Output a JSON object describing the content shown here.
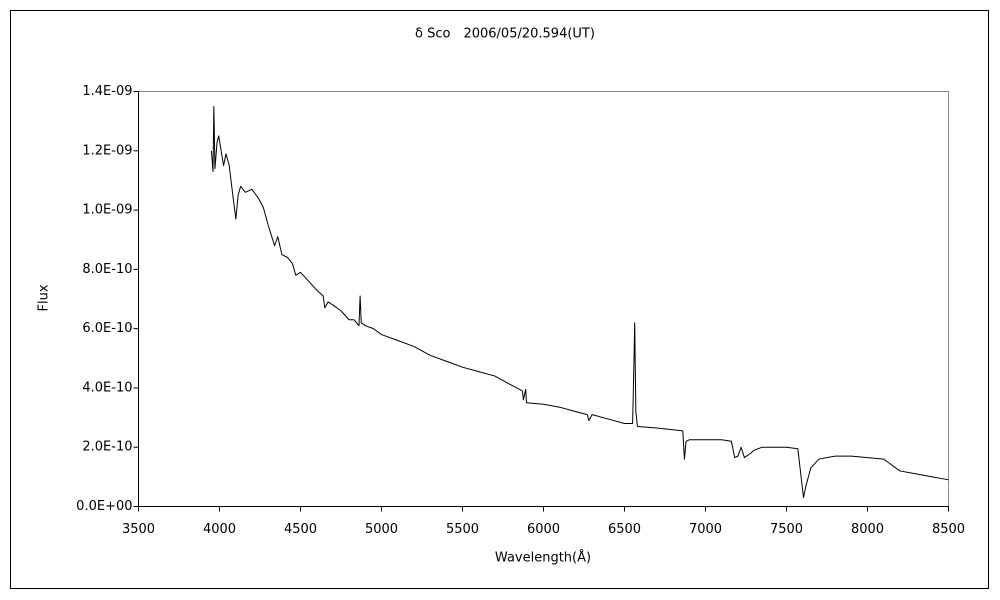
{
  "chart_data": {
    "type": "line",
    "title": "δ Sco　2006/05/20.594(UT)",
    "x_label": "Wavelength(Å)",
    "y_label": "Flux",
    "x": [
      3950,
      3960,
      3965,
      3972,
      3985,
      3995,
      4010,
      4025,
      4040,
      4060,
      4080,
      4101,
      4115,
      4130,
      4160,
      4200,
      4240,
      4270,
      4300,
      4340,
      4360,
      4385,
      4420,
      4450,
      4471,
      4500,
      4550,
      4600,
      4640,
      4650,
      4670,
      4700,
      4750,
      4800,
      4830,
      4861,
      4868,
      4875,
      4900,
      4950,
      5000,
      5100,
      5200,
      5300,
      5400,
      5500,
      5600,
      5700,
      5800,
      5870,
      5876,
      5890,
      5895,
      6000,
      6100,
      6200,
      6270,
      6280,
      6300,
      6400,
      6500,
      6550,
      6557,
      6563,
      6570,
      6580,
      6700,
      6860,
      6870,
      6880,
      6900,
      7000,
      7100,
      7160,
      7180,
      7200,
      7220,
      7240,
      7280,
      7300,
      7350,
      7400,
      7500,
      7570,
      7590,
      7605,
      7620,
      7650,
      7700,
      7800,
      7900,
      8000,
      8100,
      8200,
      8300,
      8400,
      8500
    ],
    "series": [
      {
        "name": "Flux",
        "color": "#000000",
        "values": [
          1.2e-09,
          1.13e-09,
          1.35e-09,
          1.14e-09,
          1.23e-09,
          1.25e-09,
          1.2e-09,
          1.15e-09,
          1.19e-09,
          1.15e-09,
          1.06e-09,
          9.7e-10,
          1.05e-09,
          1.08e-09,
          1.06e-09,
          1.07e-09,
          1.04e-09,
          1.01e-09,
          9.5e-10,
          8.8e-10,
          9.1e-10,
          8.5e-10,
          8.4e-10,
          8.2e-10,
          7.8e-10,
          7.9e-10,
          7.6e-10,
          7.3e-10,
          7.1e-10,
          6.7e-10,
          6.9e-10,
          6.8e-10,
          6.6e-10,
          6.3e-10,
          6.3e-10,
          6.1e-10,
          7.1e-10,
          6.2e-10,
          6.1e-10,
          6e-10,
          5.8e-10,
          5.6e-10,
          5.4e-10,
          5.1e-10,
          4.9e-10,
          4.7e-10,
          4.55e-10,
          4.4e-10,
          4.1e-10,
          3.9e-10,
          3.6e-10,
          3.95e-10,
          3.5e-10,
          3.45e-10,
          3.35e-10,
          3.2e-10,
          3.1e-10,
          2.9e-10,
          3.1e-10,
          2.95e-10,
          2.8e-10,
          2.8e-10,
          4.5e-10,
          6.2e-10,
          3.2e-10,
          2.7e-10,
          2.65e-10,
          2.55e-10,
          1.6e-10,
          2.2e-10,
          2.25e-10,
          2.25e-10,
          2.25e-10,
          2.2e-10,
          1.65e-10,
          1.7e-10,
          2e-10,
          1.65e-10,
          1.8e-10,
          1.9e-10,
          2e-10,
          2e-10,
          2e-10,
          1.95e-10,
          1e-10,
          3e-11,
          7e-11,
          1.3e-10,
          1.6e-10,
          1.7e-10,
          1.7e-10,
          1.65e-10,
          1.6e-10,
          1.2e-10,
          1.1e-10,
          1e-10,
          9e-11
        ]
      }
    ],
    "xlim": [
      3500,
      8500
    ],
    "xticks": [
      3500,
      4000,
      4500,
      5000,
      5500,
      6000,
      6500,
      7000,
      7500,
      8000,
      8500
    ],
    "ylim": [
      0,
      1.4e-09
    ],
    "yticks": [
      {
        "value": 0,
        "label": "0.0E+00"
      },
      {
        "value": 2e-10,
        "label": "2.0E-10"
      },
      {
        "value": 4e-10,
        "label": "4.0E-10"
      },
      {
        "value": 6e-10,
        "label": "6.0E-10"
      },
      {
        "value": 8e-10,
        "label": "8.0E-10"
      },
      {
        "value": 1e-09,
        "label": "1.0E-09"
      },
      {
        "value": 1.2e-09,
        "label": "1.2E-09"
      },
      {
        "value": 1.4e-09,
        "label": "1.4E-09"
      }
    ],
    "grid": false
  }
}
